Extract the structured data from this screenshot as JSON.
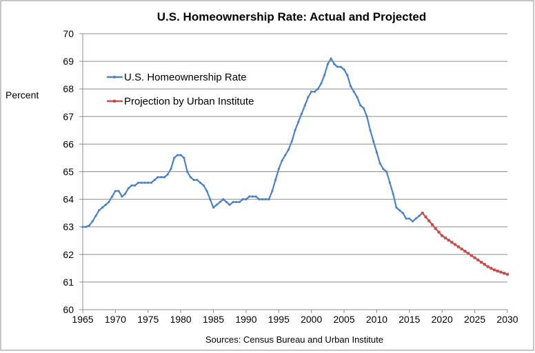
{
  "chart_data": {
    "type": "line",
    "title": "U.S. Homeownership Rate: Actual and Projected",
    "ylabel": "Percent",
    "source": "Sources: Census Bureau and Urban Institute",
    "xlim": [
      1965,
      2030
    ],
    "ylim": [
      60,
      70
    ],
    "x_ticks": [
      "1965",
      "1970",
      "1975",
      "1980",
      "1985",
      "1990",
      "1995",
      "2000",
      "2005",
      "2010",
      "2015",
      "2020",
      "2025",
      "2030"
    ],
    "y_ticks": [
      "60",
      "61",
      "62",
      "63",
      "64",
      "65",
      "66",
      "67",
      "68",
      "69",
      "70"
    ],
    "grid": "horizontal",
    "legend_position": "top-left",
    "series": [
      {
        "name": "U.S. Homeownership Rate",
        "color": "#4f81bd",
        "marker": "small-dot",
        "x": [
          1965.0,
          1965.5,
          1966.0,
          1966.5,
          1967.0,
          1967.5,
          1968.0,
          1968.5,
          1969.0,
          1969.5,
          1970.0,
          1970.5,
          1971.0,
          1971.5,
          1972.0,
          1972.5,
          1973.0,
          1973.5,
          1974.0,
          1974.5,
          1975.0,
          1975.5,
          1976.0,
          1976.5,
          1977.0,
          1977.5,
          1978.0,
          1978.5,
          1979.0,
          1979.5,
          1980.0,
          1980.5,
          1981.0,
          1981.5,
          1982.0,
          1982.5,
          1983.0,
          1983.5,
          1984.0,
          1984.5,
          1985.0,
          1985.5,
          1986.0,
          1986.5,
          1987.0,
          1987.5,
          1988.0,
          1988.5,
          1989.0,
          1989.5,
          1990.0,
          1990.5,
          1991.0,
          1991.5,
          1992.0,
          1992.5,
          1993.0,
          1993.5,
          1994.0,
          1994.5,
          1995.0,
          1995.5,
          1996.0,
          1996.5,
          1997.0,
          1997.5,
          1998.0,
          1998.5,
          1999.0,
          1999.5,
          2000.0,
          2000.5,
          2001.0,
          2001.5,
          2002.0,
          2002.5,
          2003.0,
          2003.5,
          2004.0,
          2004.5,
          2005.0,
          2005.5,
          2006.0,
          2006.5,
          2007.0,
          2007.5,
          2008.0,
          2008.5,
          2009.0,
          2009.5,
          2010.0,
          2010.5,
          2011.0,
          2011.5,
          2012.0,
          2012.5,
          2013.0,
          2013.5,
          2014.0,
          2014.5,
          2015.0,
          2015.5,
          2016.0,
          2016.5,
          2017.0
        ],
        "values": [
          63.0,
          63.0,
          63.05,
          63.2,
          63.4,
          63.6,
          63.7,
          63.8,
          63.9,
          64.1,
          64.3,
          64.3,
          64.1,
          64.2,
          64.4,
          64.5,
          64.5,
          64.6,
          64.6,
          64.6,
          64.6,
          64.6,
          64.7,
          64.8,
          64.8,
          64.8,
          64.9,
          65.1,
          65.5,
          65.6,
          65.6,
          65.5,
          65.0,
          64.8,
          64.7,
          64.7,
          64.6,
          64.5,
          64.3,
          64.0,
          63.7,
          63.8,
          63.9,
          64.0,
          63.9,
          63.8,
          63.9,
          63.9,
          63.9,
          64.0,
          64.0,
          64.1,
          64.1,
          64.1,
          64.0,
          64.0,
          64.0,
          64.0,
          64.3,
          64.7,
          65.1,
          65.4,
          65.6,
          65.8,
          66.1,
          66.5,
          66.8,
          67.1,
          67.4,
          67.7,
          67.9,
          67.9,
          68.0,
          68.2,
          68.5,
          68.9,
          69.1,
          68.9,
          68.8,
          68.8,
          68.7,
          68.5,
          68.1,
          67.9,
          67.7,
          67.4,
          67.3,
          67.0,
          66.5,
          66.1,
          65.7,
          65.3,
          65.1,
          65.0,
          64.6,
          64.2,
          63.7,
          63.6,
          63.5,
          63.3,
          63.3,
          63.2,
          63.3,
          63.4,
          63.5
        ]
      },
      {
        "name": "Projection by Urban Institute",
        "color": "#c0504d",
        "marker": "small-square",
        "x": [
          2017.0,
          2017.5,
          2018.0,
          2018.5,
          2019.0,
          2019.5,
          2020.0,
          2020.5,
          2021.0,
          2021.5,
          2022.0,
          2022.5,
          2023.0,
          2023.5,
          2024.0,
          2024.5,
          2025.0,
          2025.5,
          2026.0,
          2026.5,
          2027.0,
          2027.5,
          2028.0,
          2028.5,
          2029.0,
          2029.5,
          2030.0
        ],
        "values": [
          63.5,
          63.36,
          63.22,
          63.08,
          62.94,
          62.81,
          62.68,
          62.6,
          62.52,
          62.44,
          62.36,
          62.28,
          62.2,
          62.12,
          62.04,
          61.96,
          61.88,
          61.8,
          61.72,
          61.64,
          61.56,
          61.5,
          61.44,
          61.4,
          61.36,
          61.32,
          61.28
        ]
      }
    ]
  }
}
